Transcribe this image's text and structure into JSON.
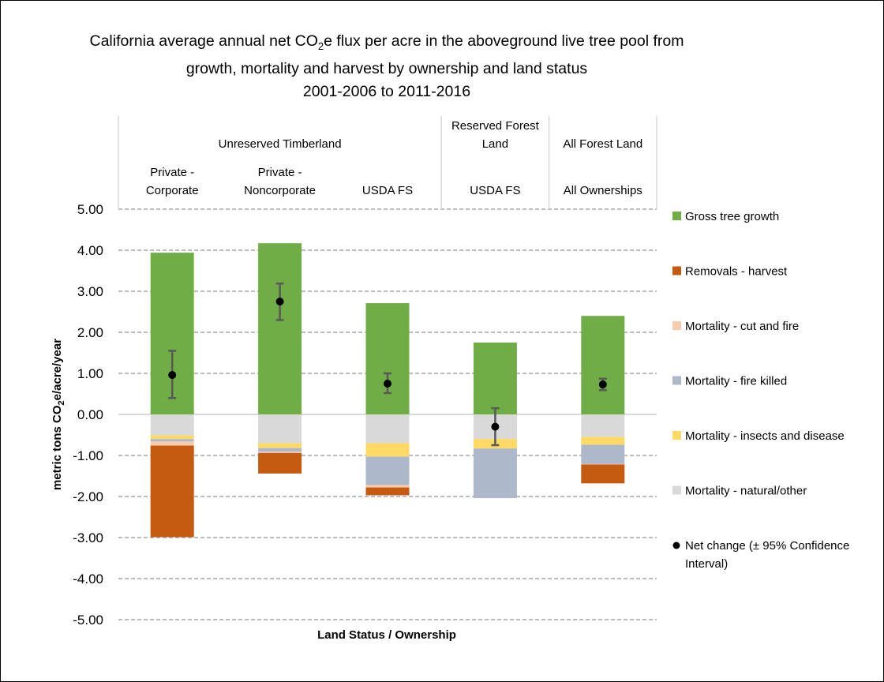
{
  "chart_data": {
    "type": "bar",
    "stacked": true,
    "title_lines": [
      "California average annual net CO",
      "2",
      "e flux per acre in the aboveground live tree pool from",
      "growth, mortality and harvest by ownership and land status",
      "2001-2006 to 2011-2016"
    ],
    "xlabel": "Land Status / Ownership",
    "ylabel": {
      "pre": "metric tons CO",
      "sub": "2",
      "post": "e/acre/year"
    },
    "ylim": [
      -5,
      5
    ],
    "yticks": [
      "5.00",
      "4.00",
      "3.00",
      "2.00",
      "1.00",
      "0.00",
      "-1.00",
      "-2.00",
      "-3.00",
      "-4.00",
      "-5.00"
    ],
    "grid": true,
    "legend_position": "right",
    "group_labels": [
      {
        "label": [
          "Unreserved Timberland"
        ],
        "span": 3
      },
      {
        "label": [
          "Reserved Forest",
          "Land"
        ],
        "span": 1
      },
      {
        "label": [
          "All Forest Land"
        ],
        "span": 1
      }
    ],
    "categories": [
      [
        "Private -",
        "Corporate"
      ],
      [
        "Private -",
        "Noncorporate"
      ],
      [
        "USDA FS"
      ],
      [
        "USDA FS"
      ],
      [
        "All Ownerships"
      ]
    ],
    "series": [
      {
        "name": "Gross tree growth",
        "color": "#70AD47",
        "values": [
          3.94,
          4.17,
          2.71,
          1.75,
          2.4
        ]
      },
      {
        "name": "Removals - harvest",
        "color": "#C55A11",
        "values": [
          -2.23,
          -0.5,
          -0.19,
          0,
          -0.46
        ]
      },
      {
        "name": "Mortality - cut and fire",
        "color": "#F8CBAD",
        "values": [
          -0.1,
          -0.03,
          -0.06,
          0,
          -0.01
        ]
      },
      {
        "name": "Mortality - fire killed",
        "color": "#ADB9CA",
        "values": [
          -0.06,
          -0.09,
          -0.69,
          -1.21,
          -0.47
        ]
      },
      {
        "name": "Mortality - insects and disease",
        "color": "#FFD966",
        "values": [
          -0.09,
          -0.12,
          -0.33,
          -0.23,
          -0.19
        ]
      },
      {
        "name": "Mortality - natural/other",
        "color": "#D9D9D9",
        "values": [
          -0.51,
          -0.7,
          -0.7,
          -0.6,
          -0.55
        ]
      }
    ],
    "net_change": {
      "name": [
        "Net change (± 95% Confidence",
        "Interval)"
      ],
      "values": [
        0.96,
        2.75,
        0.75,
        -0.3,
        0.73
      ],
      "ci_low": [
        0.4,
        2.3,
        0.52,
        -0.75,
        0.59
      ],
      "ci_high": [
        1.55,
        3.19,
        1.0,
        0.15,
        0.87
      ]
    }
  }
}
